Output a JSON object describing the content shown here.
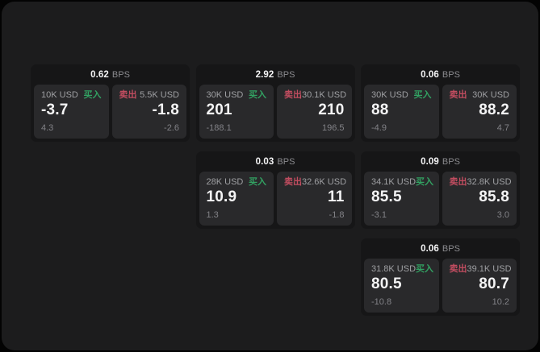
{
  "labels": {
    "bps": "BPS",
    "buy": "买入",
    "sell": "卖出"
  },
  "colors": {
    "background": "#030303",
    "frame": "#1c1c1d",
    "card": "#161617",
    "panel": "#29292b",
    "white": "#f4f4f5",
    "gray": "#9fa0a3",
    "sub_gray": "#828287",
    "dim_label": "#8b8b8f",
    "buy_green": "#32a162",
    "sell_red": "#c24d60"
  },
  "cards": [
    {
      "col": 1,
      "row": 1,
      "bps": "0.62",
      "buy": {
        "amount": "10K USD",
        "price": "-3.7",
        "change": "4.3"
      },
      "sell": {
        "amount": "5.5K USD",
        "price": "-1.8",
        "change": "-2.6"
      }
    },
    {
      "col": 2,
      "row": 1,
      "bps": "2.92",
      "buy": {
        "amount": "30K USD",
        "price": "201",
        "change": "-188.1"
      },
      "sell": {
        "amount": "30.1K USD",
        "price": "210",
        "change": "196.5"
      }
    },
    {
      "col": 3,
      "row": 1,
      "bps": "0.06",
      "buy": {
        "amount": "30K USD",
        "price": "88",
        "change": "-4.9"
      },
      "sell": {
        "amount": "30K USD",
        "price": "88.2",
        "change": "4.7"
      }
    },
    {
      "col": 2,
      "row": 2,
      "bps": "0.03",
      "buy": {
        "amount": "28K USD",
        "price": "10.9",
        "change": "1.3"
      },
      "sell": {
        "amount": "32.6K USD",
        "price": "11",
        "change": "-1.8"
      }
    },
    {
      "col": 3,
      "row": 2,
      "bps": "0.09",
      "buy": {
        "amount": "34.1K USD",
        "price": "85.5",
        "change": "-3.1"
      },
      "sell": {
        "amount": "32.8K USD",
        "price": "85.8",
        "change": "3.0"
      }
    },
    {
      "col": 3,
      "row": 3,
      "bps": "0.06",
      "buy": {
        "amount": "31.8K USD",
        "price": "80.5",
        "change": "-10.8"
      },
      "sell": {
        "amount": "39.1K USD",
        "price": "80.7",
        "change": "10.2"
      }
    }
  ]
}
